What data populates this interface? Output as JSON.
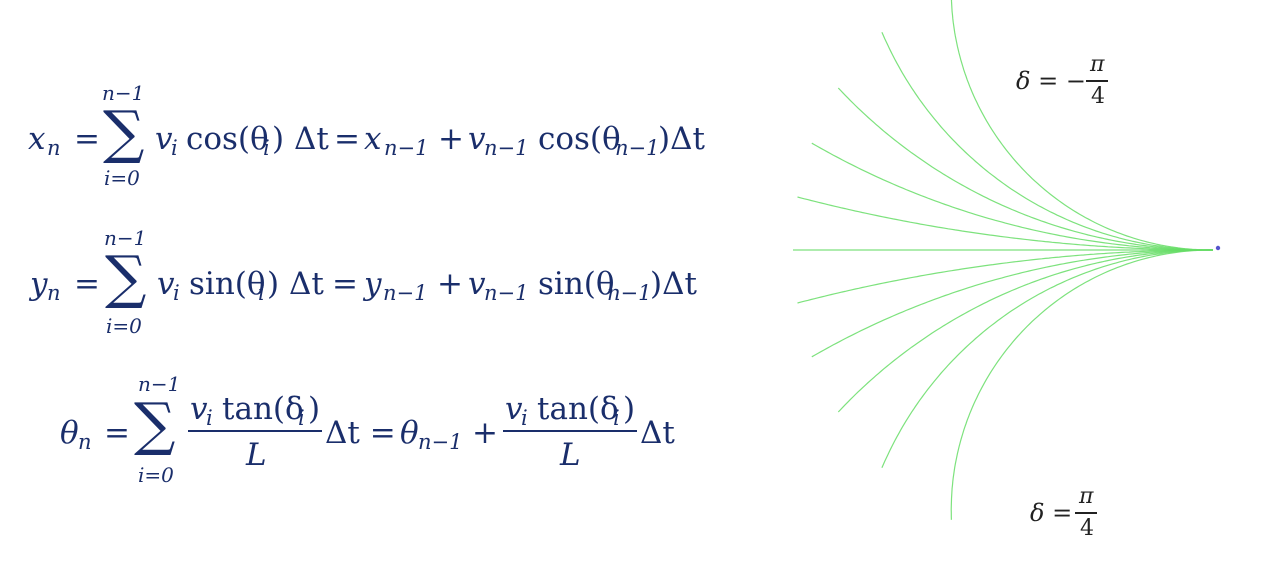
{
  "equations": {
    "x": {
      "lhs_var": "x",
      "lhs_sub": "n",
      "sum_upper": "n−1",
      "sum_lower": "i=0",
      "term_v": "v",
      "term_v_sub": "i",
      "term_fn": "cos(θ",
      "term_fn_sub": "i",
      "term_close": ") Δt",
      "eq2": "=",
      "rhs_prev": "x",
      "rhs_prev_sub": "n−1",
      "plus": "+",
      "rhs_v": "v",
      "rhs_v_sub": "n−1",
      "rhs_fn": "cos(θ",
      "rhs_fn_sub": "n−1",
      "rhs_close": ")Δt"
    },
    "y": {
      "lhs_var": "y",
      "lhs_sub": "n",
      "sum_upper": "n−1",
      "sum_lower": "i=0",
      "term_v": "v",
      "term_v_sub": "i",
      "term_fn": "sin(θ",
      "term_fn_sub": "i",
      "term_close": ") Δt",
      "eq2": "=",
      "rhs_prev": "y",
      "rhs_prev_sub": "n−1",
      "plus": "+",
      "rhs_v": "v",
      "rhs_v_sub": "n−1",
      "rhs_fn": "sin(θ",
      "rhs_fn_sub": "n−1",
      "rhs_close": ")Δt"
    },
    "theta": {
      "lhs_var": "θ",
      "lhs_sub": "n",
      "sum_upper": "n−1",
      "sum_lower": "i=0",
      "num_v": "v",
      "num_v_sub": "i",
      "num_fn": "tan(δ",
      "num_fn_sub": "i",
      "num_close": ")",
      "den": "L",
      "after_frac": "Δt =",
      "rhs_prev": "θ",
      "rhs_prev_sub": "n−1",
      "plus": "+",
      "num2_v": "v",
      "num2_v_sub": "i",
      "num2_fn": "tan(δ",
      "num2_fn_sub": "i",
      "num2_close": ")",
      "den2": "L",
      "tail": "Δt"
    },
    "equals": "="
  },
  "diagram": {
    "top_label": {
      "lhs": "δ = −",
      "num": "π",
      "den": "4"
    },
    "bottom_label": {
      "lhs": "δ =",
      "num": "π",
      "den": "4"
    },
    "curve_color": "#66dd66",
    "origin_marker_color": "#5555cc",
    "steering_angles_count": 11
  }
}
